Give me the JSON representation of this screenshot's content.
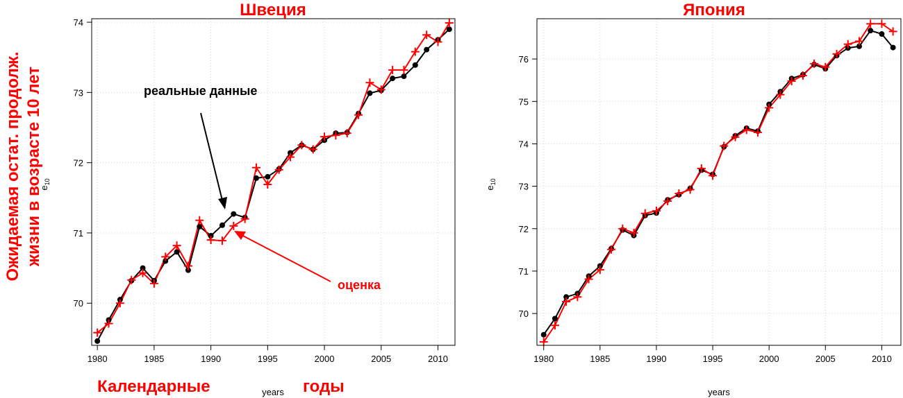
{
  "colors": {
    "real": "#000000",
    "estimate": "#ff0000",
    "grid": "#d3d3d3"
  },
  "overlay": {
    "ylabel_line1": "Ожидаемая остат. продолж.",
    "ylabel_line2": "жизни в возрасте 10 лет",
    "xlabel_left": "Календарные",
    "xlabel_right": "годы",
    "annot_real": "реальные данные",
    "annot_estimate": "оценка"
  },
  "chart_data": [
    {
      "type": "line",
      "title": "Швеция",
      "xlabel": "years",
      "ylabel_base": "e",
      "ylabel_sub": "10",
      "xlim": [
        1979.5,
        2011.5
      ],
      "ylim": [
        69.4,
        74.05
      ],
      "xticks": [
        1980,
        1985,
        1990,
        1995,
        2000,
        2005,
        2010
      ],
      "yticks": [
        70,
        71,
        72,
        73,
        74
      ],
      "grid": true,
      "x": [
        1980,
        1981,
        1982,
        1983,
        1984,
        1985,
        1986,
        1987,
        1988,
        1989,
        1990,
        1991,
        1992,
        1993,
        1994,
        1995,
        1996,
        1997,
        1998,
        1999,
        2000,
        2001,
        2002,
        2003,
        2004,
        2005,
        2006,
        2007,
        2008,
        2009,
        2010,
        2011
      ],
      "series": [
        {
          "name": "реальные данные",
          "marker": "circle",
          "values": [
            69.46,
            69.76,
            70.05,
            70.32,
            70.5,
            70.32,
            70.6,
            70.73,
            70.47,
            71.09,
            70.96,
            71.11,
            71.27,
            71.22,
            71.78,
            71.8,
            71.91,
            72.14,
            72.25,
            72.19,
            72.32,
            72.42,
            72.43,
            72.7,
            72.99,
            73.03,
            73.2,
            73.23,
            73.39,
            73.61,
            73.75,
            73.9
          ]
        },
        {
          "name": "оценка",
          "marker": "plus",
          "values": [
            69.58,
            69.71,
            70.0,
            70.33,
            70.43,
            70.28,
            70.66,
            70.82,
            70.53,
            71.18,
            70.9,
            70.89,
            71.1,
            71.2,
            71.93,
            71.69,
            71.9,
            72.08,
            72.25,
            72.19,
            72.37,
            72.39,
            72.42,
            72.68,
            73.14,
            73.04,
            73.32,
            73.32,
            73.58,
            73.82,
            73.72,
            73.99
          ]
        }
      ]
    },
    {
      "type": "line",
      "title": "Япония",
      "xlabel": "years",
      "ylabel_base": "e",
      "ylabel_sub": "10",
      "xlim": [
        1979.4,
        2011.7
      ],
      "ylim": [
        69.25,
        76.95
      ],
      "xticks": [
        1980,
        1985,
        1990,
        1995,
        2000,
        2005,
        2010
      ],
      "yticks": [
        70,
        71,
        72,
        73,
        74,
        75,
        76
      ],
      "grid": true,
      "x": [
        1980,
        1981,
        1982,
        1983,
        1984,
        1985,
        1986,
        1987,
        1988,
        1989,
        1990,
        1991,
        1992,
        1993,
        1994,
        1995,
        1996,
        1997,
        1998,
        1999,
        2000,
        2001,
        2002,
        2003,
        2004,
        2005,
        2006,
        2007,
        2008,
        2009,
        2010,
        2011
      ],
      "series": [
        {
          "name": "реальные данные",
          "marker": "circle",
          "values": [
            69.5,
            69.88,
            70.39,
            70.47,
            70.88,
            71.12,
            71.53,
            71.97,
            71.84,
            72.31,
            72.37,
            72.68,
            72.8,
            72.95,
            73.38,
            73.28,
            73.93,
            74.19,
            74.37,
            74.3,
            74.93,
            75.23,
            75.54,
            75.63,
            75.87,
            75.77,
            76.08,
            76.26,
            76.3,
            76.67,
            76.59,
            76.27
          ]
        },
        {
          "name": "оценка",
          "marker": "plus",
          "values": [
            69.33,
            69.72,
            70.28,
            70.39,
            70.81,
            71.03,
            71.51,
            72.0,
            71.9,
            72.36,
            72.42,
            72.65,
            72.83,
            72.92,
            73.42,
            73.25,
            73.95,
            74.16,
            74.33,
            74.27,
            74.85,
            75.16,
            75.48,
            75.61,
            75.89,
            75.81,
            76.12,
            76.35,
            76.42,
            76.83,
            76.83,
            76.65
          ]
        }
      ]
    }
  ]
}
